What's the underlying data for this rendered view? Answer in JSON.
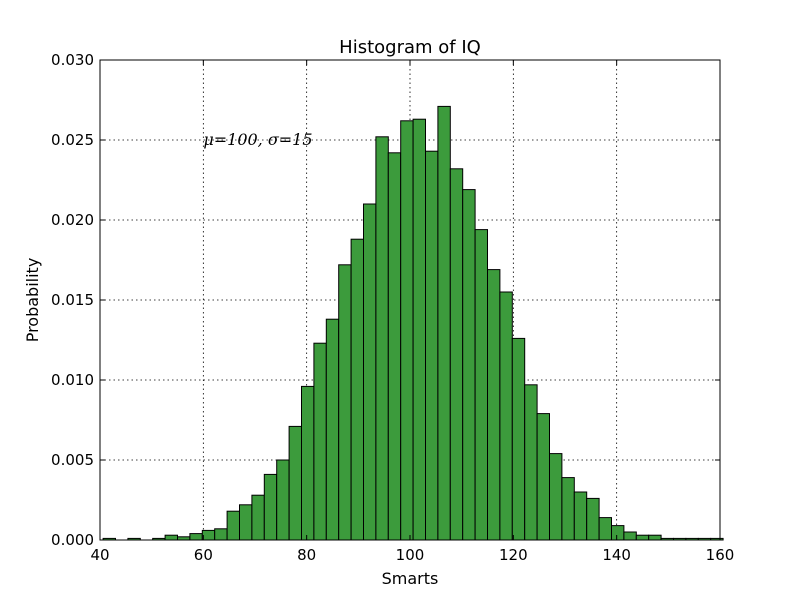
{
  "chart_data": {
    "type": "bar",
    "title": "Histogram of IQ",
    "xlabel": "Smarts",
    "ylabel": "Probability",
    "annotation": "μ=100, σ=15",
    "annotation_pos": {
      "x": 60,
      "y": 0.025
    },
    "xlim": [
      40,
      160
    ],
    "ylim": [
      0,
      0.03
    ],
    "xticks": [
      40,
      60,
      80,
      100,
      120,
      140,
      160
    ],
    "xtick_labels": [
      "40",
      "60",
      "80",
      "100",
      "120",
      "140",
      "160"
    ],
    "yticks": [
      0,
      0.005,
      0.01,
      0.015,
      0.02,
      0.025,
      0.03
    ],
    "ytick_labels": [
      "0.000",
      "0.005",
      "0.010",
      "0.015",
      "0.020",
      "0.025",
      "0.030"
    ],
    "grid": true,
    "bar_color": "#3c9b3c",
    "edge_color": "#000000",
    "bin_start": 40.6,
    "bin_width": 2.4,
    "values": [
      0.0001,
      0,
      0.0001,
      0,
      0.0001,
      0.0003,
      0.0002,
      0.0004,
      0.0006,
      0.0007,
      0.0018,
      0.0022,
      0.0028,
      0.0041,
      0.005,
      0.0071,
      0.0096,
      0.0123,
      0.0138,
      0.0172,
      0.0188,
      0.021,
      0.0252,
      0.0242,
      0.0262,
      0.0263,
      0.0243,
      0.0271,
      0.0232,
      0.0219,
      0.0194,
      0.0169,
      0.0155,
      0.0126,
      0.0097,
      0.0079,
      0.0054,
      0.0039,
      0.003,
      0.0026,
      0.0014,
      0.0009,
      0.0005,
      0.0003,
      0.0003,
      0.0001,
      0.0001,
      0.0001,
      0.0001,
      0.0001
    ]
  }
}
